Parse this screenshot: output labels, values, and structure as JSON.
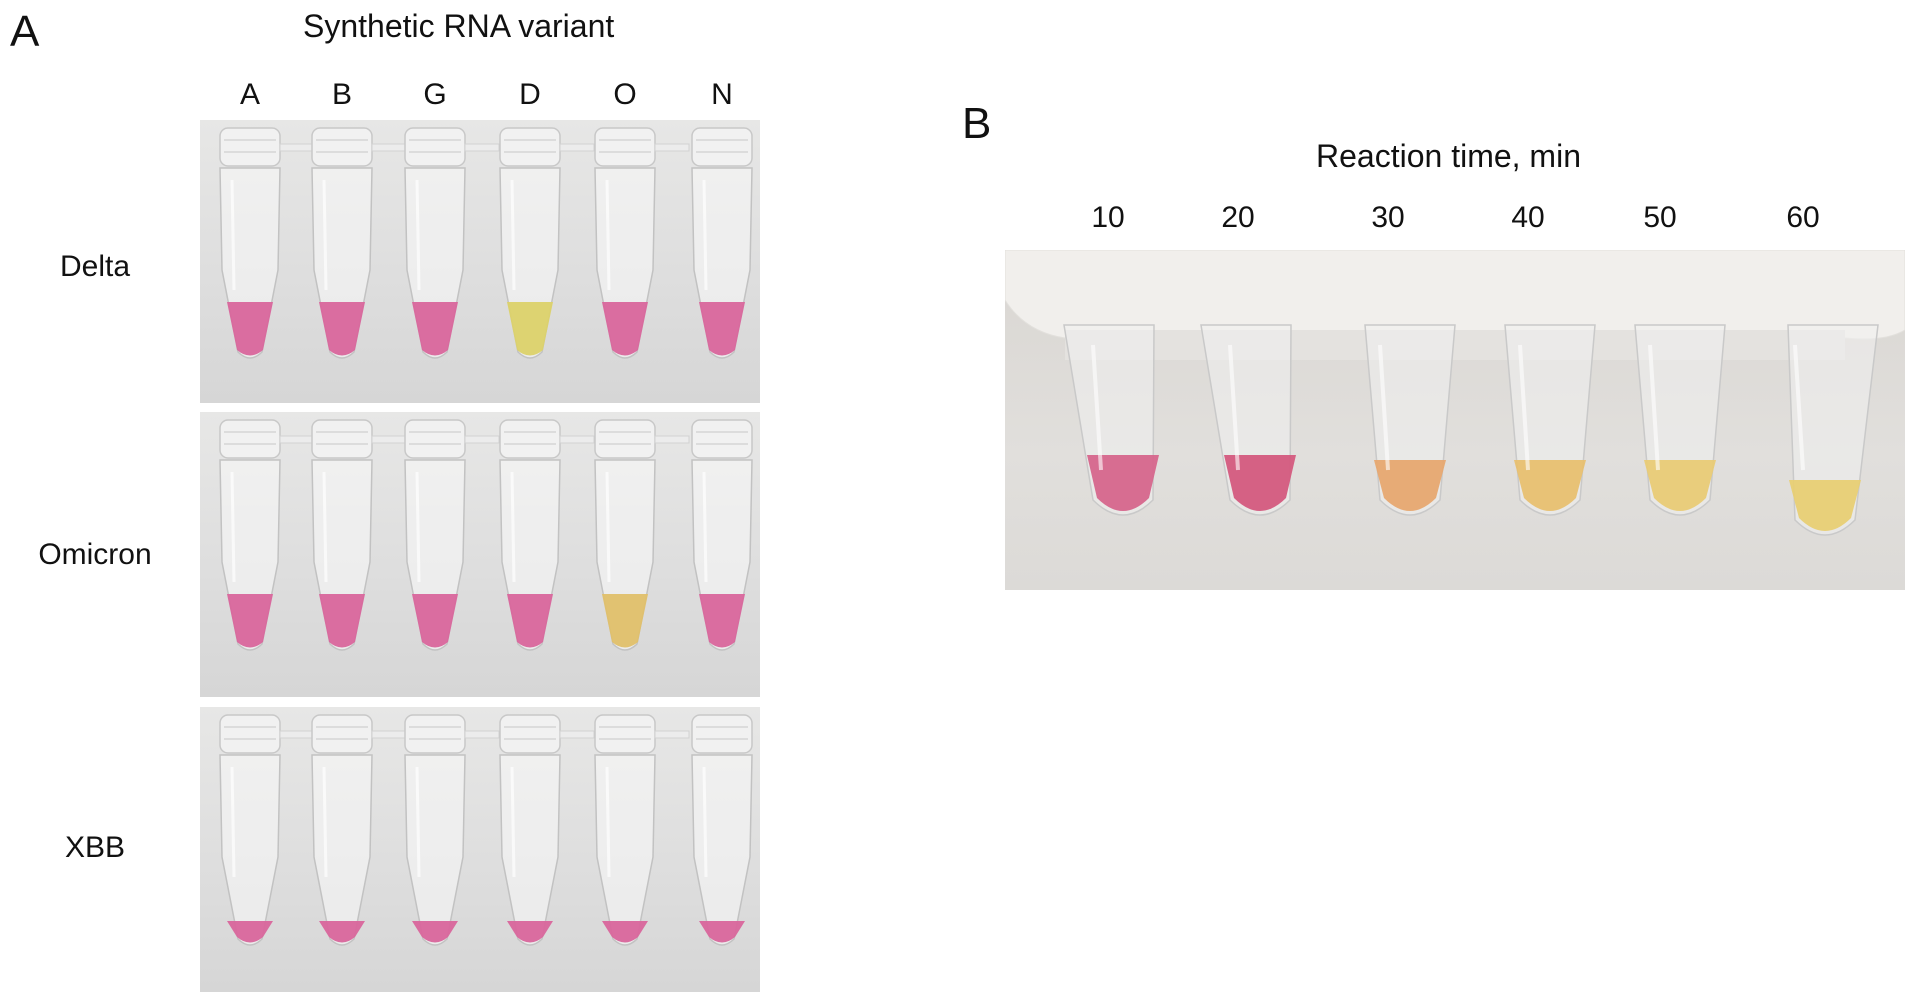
{
  "panel_a": {
    "letter": "A",
    "heading": "Synthetic RNA variant",
    "columns": [
      "A",
      "B",
      "G",
      "D",
      "O",
      "N"
    ],
    "rows": [
      {
        "label": "Delta",
        "tube_colors": [
          "#d9669c",
          "#d9669c",
          "#d9669c",
          "#dcd26a",
          "#d9669c",
          "#d9669c"
        ]
      },
      {
        "label": "Omicron",
        "tube_colors": [
          "#d9669c",
          "#d9669c",
          "#d9669c",
          "#d9669c",
          "#e0c06a",
          "#d9669c"
        ]
      },
      {
        "label": "XBB",
        "tube_colors": [
          "#d9669c",
          "#d9669c",
          "#d9669c",
          "#d9669c",
          "#d9669c",
          "#d9669c"
        ]
      }
    ]
  },
  "panel_b": {
    "letter": "B",
    "heading": "Reaction time, min",
    "times": [
      "10",
      "20",
      "30",
      "40",
      "50",
      "60"
    ],
    "tube_colors": [
      "#d6668c",
      "#d45a7e",
      "#e7a870",
      "#e8c070",
      "#e9cb76",
      "#e8cf74"
    ]
  }
}
